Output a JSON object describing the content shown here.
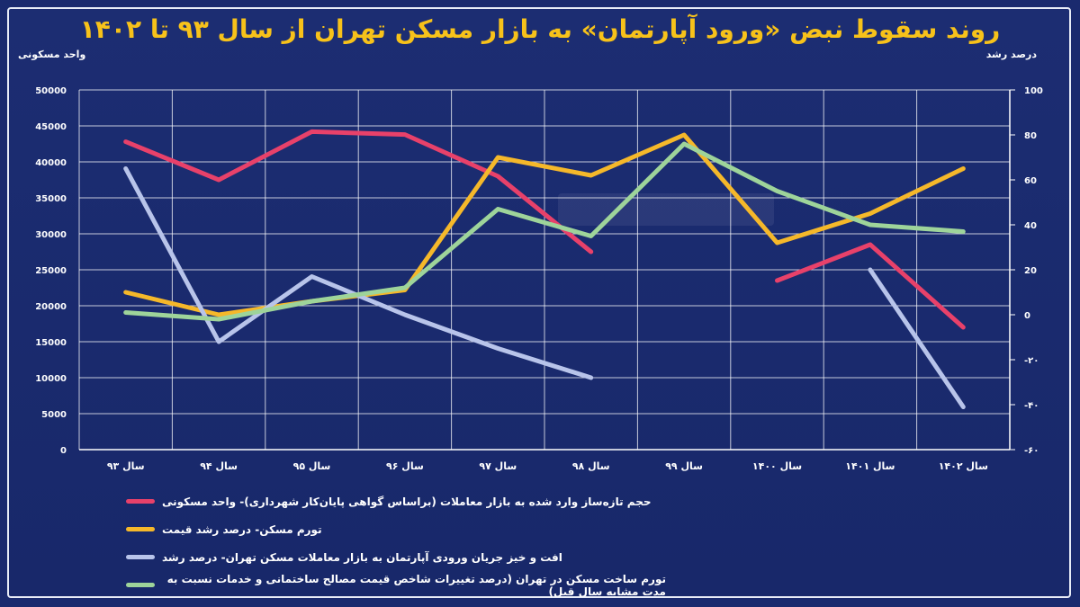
{
  "title": "روند سقوط نبض «ورود آپارتمان» به بازار مسکن تهران از سال ۹۳ تا ۱۴۰۲",
  "colors": {
    "background": "#1a2a6e",
    "title": "#f7c21a",
    "series": [
      "#e8416a",
      "#f5b82a",
      "#b8c4ea",
      "#9ed49a"
    ]
  },
  "chart_data": {
    "type": "line",
    "categories": [
      "سال ۹۳",
      "سال ۹۴",
      "سال ۹۵",
      "سال ۹۶",
      "سال ۹۷",
      "سال ۹۸",
      "سال ۹۹",
      "سال ۱۴۰۰",
      "سال ۱۴۰۱",
      "سال ۱۴۰۲"
    ],
    "left_axis": {
      "label": "واحد مسکونی",
      "ylim": [
        0,
        50000
      ],
      "ticks": [
        0,
        5000,
        10000,
        15000,
        20000,
        25000,
        30000,
        35000,
        40000,
        45000,
        50000
      ],
      "tick_labels": [
        "0",
        "5000",
        "10000",
        "15000",
        "20000",
        "25000",
        "30000",
        "35000",
        "40000",
        "45000",
        "50000"
      ]
    },
    "right_axis": {
      "label": "درصد رشد",
      "ylim": [
        -60,
        100
      ],
      "ticks": [
        -60,
        -40,
        -20,
        0,
        20,
        40,
        60,
        80,
        100
      ],
      "tick_labels": [
        "-۶۰",
        "-۴۰",
        "-۲۰",
        "0",
        "20",
        "40",
        "60",
        "80",
        "100"
      ]
    },
    "grid": true,
    "series": [
      {
        "name": "حجم تازه‌ساز وارد شده به بازار معاملات (براساس گواهی پایان‌کار شهرداری)- واحد مسکونی",
        "axis": "left",
        "values": [
          42800,
          37500,
          44200,
          43800,
          38000,
          27500,
          null,
          23500,
          28500,
          17000
        ]
      },
      {
        "name": "تورم مسکن- درصد رشد قیمت",
        "axis": "right",
        "values": [
          10,
          0,
          6,
          11,
          70,
          62,
          80,
          32,
          45,
          65
        ]
      },
      {
        "name": "افت و خیز جریان ورودی آپارتمان به بازار معاملات مسکن تهران- درصد رشد",
        "axis": "right",
        "values": [
          65,
          -12,
          17,
          0,
          -15,
          -28,
          null,
          null,
          20,
          -41
        ]
      },
      {
        "name": "تورم ساخت مسکن در تهران (درصد تغییرات شاخص قیمت مصالح ساختمانی و خدمات نسبت به مدت مشابه سال قبل)",
        "axis": "right",
        "values": [
          1,
          -2,
          6,
          12,
          47,
          35,
          76,
          55,
          40,
          37
        ]
      }
    ]
  }
}
